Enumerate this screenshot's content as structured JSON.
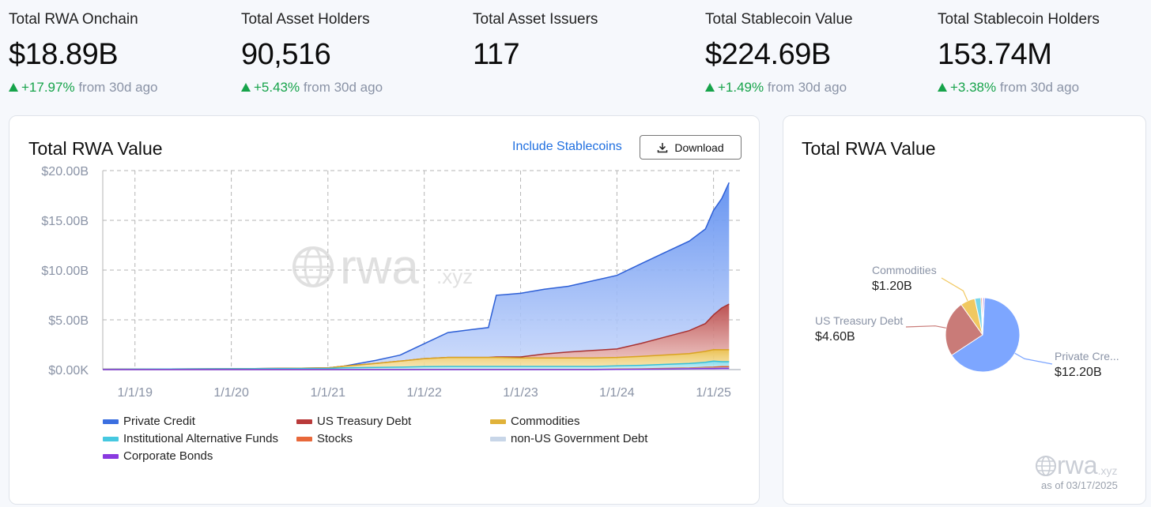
{
  "stats": [
    {
      "label": "Total RWA Onchain",
      "value": "$18.89B",
      "change": "+17.97%",
      "suffix": "from 30d ago"
    },
    {
      "label": "Total Asset Holders",
      "value": "90,516",
      "change": "+5.43%",
      "suffix": "from 30d ago"
    },
    {
      "label": "Total Asset Issuers",
      "value": "117",
      "change": "",
      "suffix": ""
    },
    {
      "label": "Total Stablecoin Value",
      "value": "$224.69B",
      "change": "+1.49%",
      "suffix": "from 30d ago"
    },
    {
      "label": "Total Stablecoin Holders",
      "value": "153.74M",
      "change": "+3.38%",
      "suffix": "from 30d ago"
    }
  ],
  "main_chart": {
    "title": "Total RWA Value",
    "include_stablecoins": "Include Stablecoins",
    "download_label": "Download",
    "watermark": "rwa",
    "watermark_suffix": ".xyz",
    "legend": [
      {
        "name": "Private Credit",
        "color": "#3b6fe0"
      },
      {
        "name": "US Treasury Debt",
        "color": "#b93a3a"
      },
      {
        "name": "Commodities",
        "color": "#e0b23a"
      },
      {
        "name": "Institutional Alternative Funds",
        "color": "#46c8e0"
      },
      {
        "name": "Stocks",
        "color": "#e8683a"
      },
      {
        "name": "non-US Government Debt",
        "color": "#c8d6e8"
      },
      {
        "name": "Corporate Bonds",
        "color": "#8a3ae0"
      }
    ]
  },
  "pie_chart": {
    "title": "Total RWA Value",
    "watermark": "rwa",
    "watermark_suffix": ".xyz",
    "as_of": "as of 03/17/2025",
    "labels": [
      {
        "name": "Commodities",
        "value": "$1.20B"
      },
      {
        "name": "US Treasury Debt",
        "value": "$4.60B"
      },
      {
        "name": "Private Cre...",
        "value": "$12.20B"
      }
    ]
  },
  "chart_data": [
    {
      "type": "area",
      "title": "Total RWA Value",
      "stacked": true,
      "grid": true,
      "x_ticks": [
        "1/1/19",
        "1/1/20",
        "1/1/21",
        "1/1/22",
        "1/1/23",
        "1/1/24",
        "1/1/25"
      ],
      "y_ticks": [
        "$0.00K",
        "$5.00B",
        "$10.00B",
        "$15.00B",
        "$20.00B"
      ],
      "ylim": [
        0,
        20
      ],
      "x": [
        "2018-09",
        "2019-01",
        "2020-01",
        "2021-01",
        "2021-03",
        "2021-07",
        "2021-10",
        "2022-01",
        "2022-04",
        "2022-07",
        "2022-09",
        "2022-10",
        "2023-01",
        "2023-04",
        "2023-07",
        "2023-10",
        "2024-01",
        "2024-04",
        "2024-07",
        "2024-10",
        "2024-12",
        "2025-01",
        "2025-02",
        "2025-03"
      ],
      "series": [
        {
          "name": "Corporate Bonds",
          "values": [
            0,
            0,
            0,
            0,
            0,
            0,
            0,
            0,
            0,
            0,
            0,
            0,
            0,
            0,
            0,
            0,
            0.02,
            0.03,
            0.05,
            0.08,
            0.1,
            0.1,
            0.12,
            0.12
          ]
        },
        {
          "name": "non-US Government Debt",
          "values": [
            0,
            0,
            0,
            0,
            0,
            0,
            0,
            0,
            0,
            0,
            0,
            0,
            0,
            0,
            0,
            0,
            0,
            0.02,
            0.02,
            0.03,
            0.05,
            0.05,
            0.05,
            0.05
          ]
        },
        {
          "name": "Stocks",
          "values": [
            0,
            0,
            0,
            0,
            0,
            0,
            0,
            0.02,
            0.02,
            0.02,
            0.02,
            0.02,
            0.02,
            0.02,
            0.02,
            0.02,
            0.03,
            0.03,
            0.05,
            0.05,
            0.08,
            0.1,
            0.12,
            0.12
          ]
        },
        {
          "name": "Institutional Alternative Funds",
          "values": [
            0.03,
            0.05,
            0.08,
            0.12,
            0.18,
            0.22,
            0.25,
            0.28,
            0.3,
            0.3,
            0.3,
            0.3,
            0.3,
            0.3,
            0.3,
            0.3,
            0.32,
            0.35,
            0.4,
            0.45,
            0.5,
            0.6,
            0.5,
            0.5
          ]
        },
        {
          "name": "Commodities",
          "values": [
            0,
            0,
            0,
            0.05,
            0.15,
            0.4,
            0.6,
            0.8,
            0.9,
            0.9,
            0.9,
            0.9,
            0.85,
            0.85,
            0.85,
            0.85,
            0.85,
            0.9,
            0.95,
            1.0,
            1.1,
            1.15,
            1.2,
            1.2
          ]
        },
        {
          "name": "US Treasury Debt",
          "values": [
            0,
            0,
            0,
            0,
            0,
            0,
            0,
            0,
            0,
            0,
            0,
            0.05,
            0.1,
            0.4,
            0.6,
            0.75,
            0.85,
            1.3,
            1.8,
            2.3,
            2.8,
            3.5,
            4.2,
            4.6
          ]
        },
        {
          "name": "Private Credit",
          "values": [
            0,
            0,
            0,
            0,
            0,
            0.3,
            0.6,
            1.5,
            2.5,
            2.8,
            3.0,
            6.2,
            6.4,
            6.5,
            6.6,
            7.0,
            7.4,
            8.0,
            8.5,
            9.0,
            9.5,
            10.5,
            11.0,
            12.2
          ]
        }
      ]
    },
    {
      "type": "pie",
      "title": "Total RWA Value",
      "categories": [
        "Private Credit",
        "US Treasury Debt",
        "Commodities",
        "Institutional Alternative Funds",
        "Stocks",
        "non-US Government Debt",
        "Corporate Bonds"
      ],
      "values": [
        12.2,
        4.6,
        1.2,
        0.5,
        0.12,
        0.05,
        0.12
      ],
      "colors": [
        "#7da6ff",
        "#c97b78",
        "#f1c860",
        "#79d6e8",
        "#f08a6a",
        "#c8d6e8",
        "#a97be8"
      ]
    }
  ]
}
